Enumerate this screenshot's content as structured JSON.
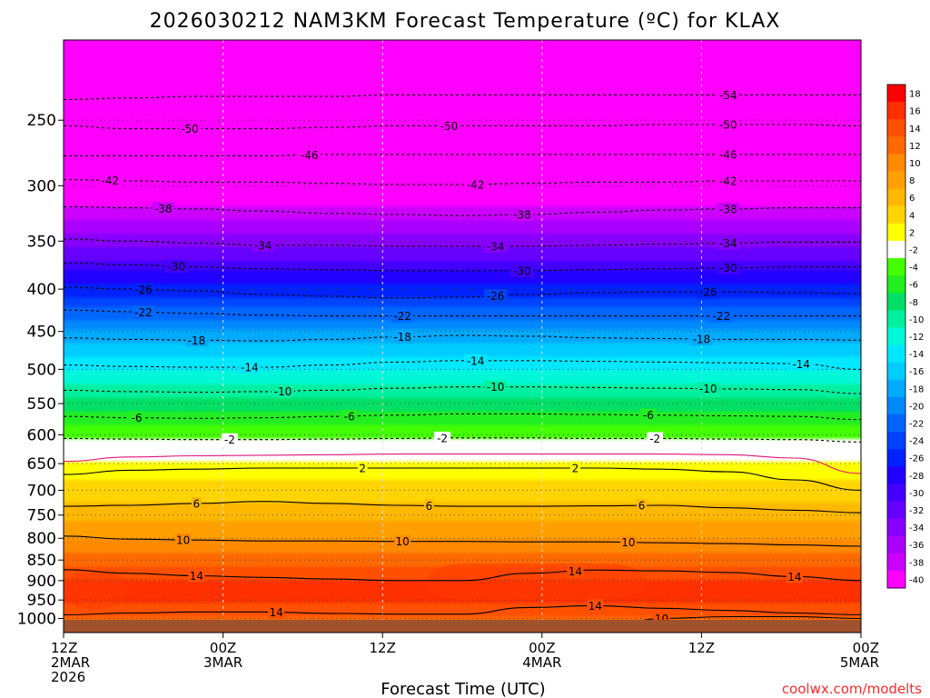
{
  "chart_data": {
    "type": "heatmap",
    "title": "2026030212 NAM3KM Forecast Temperature (ºC) for KLAX",
    "xlabel": "Forecast Time (UTC)",
    "ylabel": "",
    "credit": "coolwx.com/modelts",
    "y_axis": {
      "scale": "log",
      "range": [
        1040,
        200
      ],
      "ticks": [
        "250",
        "300",
        "350",
        "400",
        "450",
        "500",
        "550",
        "600",
        "650",
        "700",
        "750",
        "800",
        "850",
        "900",
        "950",
        "1000"
      ]
    },
    "x_axis": {
      "range_hours": [
        0,
        60
      ],
      "ticks": [
        {
          "hour": 0,
          "lines": [
            "12Z",
            "2MAR",
            "2026"
          ]
        },
        {
          "hour": 12,
          "lines": [
            "00Z",
            "3MAR"
          ]
        },
        {
          "hour": 24,
          "lines": [
            "12Z"
          ]
        },
        {
          "hour": 36,
          "lines": [
            "00Z",
            "4MAR"
          ]
        },
        {
          "hour": 48,
          "lines": [
            "12Z"
          ]
        },
        {
          "hour": 60,
          "lines": [
            "00Z",
            "5MAR"
          ]
        }
      ]
    },
    "grid": true,
    "colorbar": {
      "placement": "right",
      "levels": [
        {
          "label": "18",
          "color": "#ff0000"
        },
        {
          "label": "16",
          "color": "#ff3000"
        },
        {
          "label": "14",
          "color": "#ff5000"
        },
        {
          "label": "12",
          "color": "#ff6a00"
        },
        {
          "label": "10",
          "color": "#ff8a00"
        },
        {
          "label": "8",
          "color": "#ffa000"
        },
        {
          "label": "6",
          "color": "#ffb800"
        },
        {
          "label": "4",
          "color": "#ffd400"
        },
        {
          "label": "2",
          "color": "#ffff00"
        },
        {
          "label": "-2",
          "color": "#ffffff"
        },
        {
          "label": "-4",
          "color": "#44ff00"
        },
        {
          "label": "-6",
          "color": "#22ee22"
        },
        {
          "label": "-8",
          "color": "#00e066"
        },
        {
          "label": "-10",
          "color": "#00f0a0"
        },
        {
          "label": "-12",
          "color": "#00f8d8"
        },
        {
          "label": "-14",
          "color": "#00e8ff"
        },
        {
          "label": "-16",
          "color": "#00ccff"
        },
        {
          "label": "-18",
          "color": "#00aaff"
        },
        {
          "label": "-20",
          "color": "#0088ff"
        },
        {
          "label": "-22",
          "color": "#0066ff"
        },
        {
          "label": "-24",
          "color": "#0044ff"
        },
        {
          "label": "-26",
          "color": "#0022ff"
        },
        {
          "label": "-28",
          "color": "#2200ff"
        },
        {
          "label": "-30",
          "color": "#4400ff"
        },
        {
          "label": "-32",
          "color": "#6600ff"
        },
        {
          "label": "-34",
          "color": "#8800ff"
        },
        {
          "label": "-36",
          "color": "#aa00ff"
        },
        {
          "label": "-38",
          "color": "#cc00ff"
        },
        {
          "label": "-40",
          "color": "#ff00ff"
        }
      ]
    },
    "profile": [
      {
        "p": 200,
        "t": -58
      },
      {
        "p": 250,
        "t": -51
      },
      {
        "p": 300,
        "t": -42
      },
      {
        "p": 350,
        "t": -34
      },
      {
        "p": 400,
        "t": -26
      },
      {
        "p": 450,
        "t": -19
      },
      {
        "p": 500,
        "t": -13
      },
      {
        "p": 550,
        "t": -8.5
      },
      {
        "p": 600,
        "t": -3.5
      },
      {
        "p": 630,
        "t": 0
      },
      {
        "p": 650,
        "t": 1.5
      },
      {
        "p": 700,
        "t": 4
      },
      {
        "p": 750,
        "t": 6
      },
      {
        "p": 800,
        "t": 9
      },
      {
        "p": 850,
        "t": 12.5
      },
      {
        "p": 900,
        "t": 15
      },
      {
        "p": 950,
        "t": 15.5
      },
      {
        "p": 1000,
        "t": 13
      },
      {
        "p": 1040,
        "t": 12
      }
    ],
    "contours": [
      {
        "value": -54,
        "style": "dashed",
        "pressure": [
          236,
          235,
          234,
          234,
          234,
          233,
          233,
          233,
          233,
          233,
          233,
          233,
          233
        ],
        "labels": [
          {
            "hour": 50,
            "text": "-54"
          }
        ]
      },
      {
        "value": -50,
        "style": "dashed",
        "pressure": [
          254,
          256,
          256,
          256,
          255,
          254,
          254,
          254,
          254,
          253,
          253,
          253,
          254
        ],
        "labels": [
          {
            "hour": 9.5,
            "text": "-50"
          },
          {
            "hour": 29,
            "text": "-50"
          },
          {
            "hour": 50,
            "text": "-50"
          }
        ]
      },
      {
        "value": -46,
        "style": "dashed",
        "pressure": [
          276,
          276,
          276,
          276,
          275,
          275,
          275,
          275,
          275,
          275,
          275,
          275,
          275
        ],
        "labels": [
          {
            "hour": 18.5,
            "text": "-46"
          },
          {
            "hour": 50,
            "text": "-46"
          }
        ]
      },
      {
        "value": -42,
        "style": "dashed",
        "pressure": [
          295,
          296,
          297,
          297,
          298,
          299,
          299,
          298,
          297,
          297,
          296,
          296,
          296
        ],
        "labels": [
          {
            "hour": 3.5,
            "text": "-42"
          },
          {
            "hour": 31,
            "text": "-42"
          },
          {
            "hour": 50,
            "text": "-42"
          }
        ]
      },
      {
        "value": -38,
        "style": "dashed",
        "pressure": [
          318,
          319,
          320,
          322,
          324,
          325,
          326,
          325,
          323,
          321,
          320,
          319,
          319
        ],
        "labels": [
          {
            "hour": 7.5,
            "text": "-38"
          },
          {
            "hour": 34.5,
            "text": "-38"
          },
          {
            "hour": 50,
            "text": "-38"
          }
        ]
      },
      {
        "value": -34,
        "style": "dashed",
        "pressure": [
          348,
          350,
          352,
          354,
          354,
          355,
          355,
          355,
          354,
          353,
          352,
          351,
          351
        ],
        "labels": [
          {
            "hour": 15,
            "text": "-34"
          },
          {
            "hour": 32.5,
            "text": "-34"
          },
          {
            "hour": 50,
            "text": "-34"
          }
        ]
      },
      {
        "value": -30,
        "style": "dashed",
        "pressure": [
          372,
          374,
          376,
          378,
          379,
          380,
          380,
          380,
          379,
          378,
          377,
          376,
          376
        ],
        "labels": [
          {
            "hour": 8.5,
            "text": "-30"
          },
          {
            "hour": 34.5,
            "text": "-30"
          },
          {
            "hour": 50,
            "text": "-30"
          }
        ]
      },
      {
        "value": -26,
        "style": "dashed",
        "pressure": [
          398,
          400,
          402,
          406,
          408,
          410,
          409,
          406,
          404,
          403,
          403,
          404,
          405
        ],
        "labels": [
          {
            "hour": 6,
            "text": "-26"
          },
          {
            "hour": 32.5,
            "text": "-26"
          },
          {
            "hour": 48.5,
            "text": "-26"
          }
        ]
      },
      {
        "value": -22,
        "style": "dashed",
        "pressure": [
          424,
          426,
          428,
          430,
          431,
          431,
          431,
          431,
          431,
          431,
          431,
          431,
          431
        ],
        "labels": [
          {
            "hour": 6,
            "text": "-22"
          },
          {
            "hour": 25.5,
            "text": "-22"
          },
          {
            "hour": 49.5,
            "text": "-22"
          }
        ]
      },
      {
        "value": -18,
        "style": "dashed",
        "pressure": [
          458,
          460,
          461,
          462,
          460,
          457,
          455,
          456,
          458,
          459,
          460,
          460,
          461
        ],
        "labels": [
          {
            "hour": 10,
            "text": "-18"
          },
          {
            "hour": 25.5,
            "text": "-18"
          },
          {
            "hour": 48,
            "text": "-18"
          }
        ]
      },
      {
        "value": -14,
        "style": "dashed",
        "pressure": [
          494,
          496,
          497,
          497,
          494,
          490,
          488,
          488,
          489,
          490,
          491,
          492,
          500
        ],
        "labels": [
          {
            "hour": 14,
            "text": "-14"
          },
          {
            "hour": 31,
            "text": "-14"
          },
          {
            "hour": 55.5,
            "text": "-14"
          }
        ]
      },
      {
        "value": -10,
        "style": "dashed",
        "pressure": [
          530,
          532,
          533,
          532,
          530,
          527,
          525,
          525,
          526,
          527,
          528,
          529,
          535
        ],
        "labels": [
          {
            "hour": 16.5,
            "text": "-10"
          },
          {
            "hour": 32.5,
            "text": "-10"
          },
          {
            "hour": 48.5,
            "text": "-10"
          }
        ]
      },
      {
        "value": -6,
        "style": "dashed",
        "pressure": [
          570,
          572,
          573,
          572,
          570,
          568,
          566,
          566,
          567,
          568,
          569,
          570,
          575
        ],
        "labels": [
          {
            "hour": 5.5,
            "text": "-6"
          },
          {
            "hour": 21.5,
            "text": "-6"
          },
          {
            "hour": 44,
            "text": "-6"
          }
        ]
      },
      {
        "value": -2,
        "style": "dashed",
        "pressure": [
          606,
          607,
          608,
          608,
          607,
          606,
          605,
          605,
          606,
          606,
          607,
          608,
          612
        ],
        "labels": [
          {
            "hour": 12.5,
            "text": "-2"
          },
          {
            "hour": 28.5,
            "text": "-2"
          },
          {
            "hour": 44.5,
            "text": "-2"
          }
        ]
      },
      {
        "value": 0,
        "style": "magenta",
        "pressure": [
          646,
          638,
          636,
          635,
          634,
          633,
          633,
          633,
          633,
          633,
          634,
          640,
          668
        ]
      },
      {
        "value": 2,
        "style": "solid",
        "pressure": [
          670,
          662,
          660,
          658,
          658,
          658,
          658,
          658,
          658,
          660,
          665,
          680,
          700
        ],
        "labels": [
          {
            "hour": 22.5,
            "text": "2"
          },
          {
            "hour": 38.5,
            "text": "2"
          }
        ]
      },
      {
        "value": 6,
        "style": "solid",
        "pressure": [
          732,
          730,
          726,
          722,
          726,
          730,
          732,
          732,
          731,
          730,
          735,
          740,
          745
        ],
        "labels": [
          {
            "hour": 10,
            "text": "6"
          },
          {
            "hour": 27.5,
            "text": "6"
          },
          {
            "hour": 43.5,
            "text": "6"
          }
        ]
      },
      {
        "value": 10,
        "style": "solid",
        "pressure": [
          795,
          802,
          804,
          806,
          806,
          807,
          807,
          808,
          808,
          810,
          812,
          815,
          818
        ],
        "labels": [
          {
            "hour": 9,
            "text": "10"
          },
          {
            "hour": 25.5,
            "text": "10"
          },
          {
            "hour": 42.5,
            "text": "10"
          }
        ]
      },
      {
        "value": 14,
        "style": "solid",
        "pressure": [
          873,
          882,
          888,
          892,
          896,
          900,
          900,
          882,
          874,
          876,
          880,
          890,
          900
        ],
        "labels": [
          {
            "hour": 10,
            "text": "14"
          },
          {
            "hour": 38.5,
            "text": "14"
          },
          {
            "hour": 55,
            "text": "14"
          }
        ]
      },
      {
        "value": 14,
        "style": "solid",
        "pressure": [
          990,
          985,
          982,
          982,
          986,
          988,
          988,
          970,
          965,
          972,
          978,
          985,
          990
        ],
        "labels": [
          {
            "hour": 16,
            "text": "14"
          },
          {
            "hour": 40,
            "text": "14"
          }
        ]
      },
      {
        "value": 10,
        "style": "solid",
        "pressure": [
          1040,
          1040,
          1040,
          1040,
          1040,
          1040,
          1040,
          1040,
          1040,
          1000,
          995,
          995,
          1000
        ],
        "labels": [
          {
            "hour": 45,
            "text": "10"
          }
        ]
      }
    ]
  }
}
